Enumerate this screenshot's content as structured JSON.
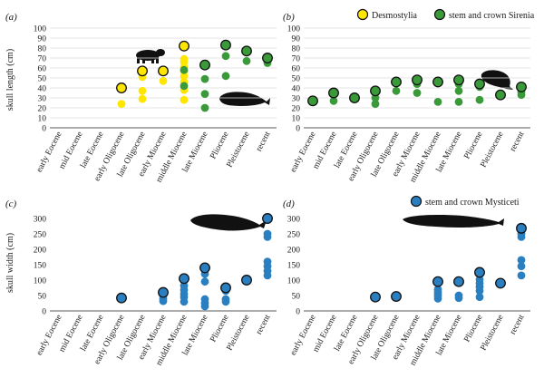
{
  "chart_data": [
    {
      "type": "scatter",
      "panel_label": "(a)",
      "ylabel": "skull length (cm)",
      "ylim": [
        0,
        100
      ],
      "yticks": [
        0,
        10,
        20,
        30,
        40,
        50,
        60,
        70,
        80,
        90,
        100
      ],
      "categories": [
        "early Eocene",
        "mid Eocene",
        "late Eocene",
        "early Oligocene",
        "late Oligocene",
        "early Miocene",
        "middle Miocene",
        "late Miocene",
        "Pliocene",
        "Pleistocene",
        "recent"
      ],
      "grid": true,
      "silhouettes": [
        "desmostylian-silhouette",
        "sirenian-silhouette"
      ],
      "series": [
        {
          "name": "Desmostylia",
          "color": "#ffe600",
          "points": [
            [
              3,
              24
            ],
            [
              3,
              40,
              "outlined"
            ],
            [
              4,
              29
            ],
            [
              4,
              37
            ],
            [
              4,
              51
            ],
            [
              4,
              57,
              "outlined"
            ],
            [
              5,
              47
            ],
            [
              5,
              57,
              "outlined"
            ],
            [
              6,
              28
            ],
            [
              6,
              38
            ],
            [
              6,
              46
            ],
            [
              6,
              52
            ],
            [
              6,
              57
            ],
            [
              6,
              61
            ],
            [
              6,
              66
            ],
            [
              6,
              69
            ],
            [
              6,
              82,
              "outlined"
            ]
          ]
        },
        {
          "name": "stem and crown Sirenia",
          "color": "#3a9a3a",
          "points": [
            [
              6,
              42
            ],
            [
              6,
              58
            ],
            [
              7,
              20
            ],
            [
              7,
              34
            ],
            [
              7,
              49
            ],
            [
              7,
              63,
              "outlined"
            ],
            [
              8,
              52
            ],
            [
              8,
              72
            ],
            [
              8,
              83,
              "outlined"
            ],
            [
              9,
              67
            ],
            [
              9,
              77,
              "outlined"
            ],
            [
              10,
              65
            ],
            [
              10,
              70,
              "outlined"
            ]
          ]
        }
      ]
    },
    {
      "type": "scatter",
      "panel_label": "(b)",
      "ylabel": "",
      "ylim": [
        0,
        100
      ],
      "yticks": [
        0,
        10,
        20,
        30,
        40,
        50,
        60,
        70,
        80,
        90,
        100
      ],
      "categories": [
        "early Eocene",
        "mid Eocene",
        "late Eocene",
        "early Oligocene",
        "late Oligocene",
        "early Miocene",
        "middle Miocene",
        "late Miocene",
        "Pliocene",
        "Pleistocene",
        "recent"
      ],
      "grid": true,
      "silhouettes": [
        "manatee-silhouette"
      ],
      "legend_position": "top",
      "legend": [
        {
          "label": "Desmostylia",
          "color": "#ffe600"
        },
        {
          "label": "stem and crown Sirenia",
          "color": "#3a9a3a"
        }
      ],
      "series": [
        {
          "name": "stem and crown Sirenia",
          "color": "#3a9a3a",
          "points": [
            [
              0,
              27,
              "outlined"
            ],
            [
              1,
              27
            ],
            [
              1,
              35,
              "outlined"
            ],
            [
              2,
              30,
              "outlined"
            ],
            [
              3,
              24
            ],
            [
              3,
              30
            ],
            [
              3,
              37,
              "outlined"
            ],
            [
              4,
              37
            ],
            [
              4,
              46,
              "outlined"
            ],
            [
              5,
              35
            ],
            [
              5,
              44
            ],
            [
              5,
              48,
              "outlined"
            ],
            [
              6,
              26
            ],
            [
              6,
              46,
              "outlined"
            ],
            [
              7,
              26
            ],
            [
              7,
              37
            ],
            [
              7,
              44
            ],
            [
              7,
              48,
              "outlined"
            ],
            [
              8,
              28
            ],
            [
              8,
              41
            ],
            [
              8,
              44,
              "outlined"
            ],
            [
              9,
              33,
              "outlined"
            ],
            [
              10,
              33
            ],
            [
              10,
              36
            ],
            [
              10,
              41,
              "outlined"
            ]
          ]
        }
      ]
    },
    {
      "type": "scatter",
      "panel_label": "(c)",
      "ylabel": "skull width (cm)",
      "ylim": [
        0,
        300
      ],
      "yticks": [
        0,
        50,
        100,
        150,
        200,
        250,
        300
      ],
      "categories": [
        "early Eocene",
        "mid Eocene",
        "late Eocene",
        "early Oligocene",
        "late Oligocene",
        "early Miocene",
        "middle Miocene",
        "late Miocene",
        "Pliocene",
        "Pleistocene",
        "recent"
      ],
      "grid": false,
      "silhouettes": [
        "whale-silhouette"
      ],
      "series": [
        {
          "name": "stem and crown Mysticeti",
          "color": "#2a7fc0",
          "points": [
            [
              3,
              42,
              "outlined"
            ],
            [
              5,
              32
            ],
            [
              5,
              40
            ],
            [
              5,
              48
            ],
            [
              5,
              60,
              "outlined"
            ],
            [
              6,
              30
            ],
            [
              6,
              45
            ],
            [
              6,
              55
            ],
            [
              6,
              68
            ],
            [
              6,
              82
            ],
            [
              6,
              105,
              "outlined"
            ],
            [
              7,
              15
            ],
            [
              7,
              25
            ],
            [
              7,
              38
            ],
            [
              7,
              95
            ],
            [
              7,
              120
            ],
            [
              7,
              140,
              "outlined"
            ],
            [
              8,
              30
            ],
            [
              8,
              38
            ],
            [
              8,
              65
            ],
            [
              8,
              75,
              "outlined"
            ],
            [
              9,
              100,
              "outlined"
            ],
            [
              10,
              115
            ],
            [
              10,
              130
            ],
            [
              10,
              145
            ],
            [
              10,
              160
            ],
            [
              10,
              240
            ],
            [
              10,
              250
            ],
            [
              10,
              295
            ],
            [
              10,
              300,
              "outlined"
            ]
          ]
        }
      ]
    },
    {
      "type": "scatter",
      "panel_label": "(d)",
      "ylabel": "",
      "ylim": [
        0,
        300
      ],
      "yticks": [
        0,
        50,
        100,
        150,
        200,
        250,
        300
      ],
      "categories": [
        "early Eocene",
        "mid Eocene",
        "late Eocene",
        "early Oligocene",
        "late Oligocene",
        "early Miocene",
        "middle Miocene",
        "late Miocene",
        "Pliocene",
        "Pleistocene",
        "recent"
      ],
      "grid": false,
      "silhouettes": [
        "whale-silhouette"
      ],
      "legend_position": "top-right",
      "legend": [
        {
          "label": "stem and crown Mysticeti",
          "color": "#2a7fc0"
        }
      ],
      "series": [
        {
          "name": "stem and crown Mysticeti",
          "color": "#2a7fc0",
          "points": [
            [
              3,
              45,
              "outlined"
            ],
            [
              4,
              47,
              "outlined"
            ],
            [
              6,
              40
            ],
            [
              6,
              48
            ],
            [
              6,
              55
            ],
            [
              6,
              62
            ],
            [
              6,
              70
            ],
            [
              6,
              95,
              "outlined"
            ],
            [
              7,
              42
            ],
            [
              7,
              50
            ],
            [
              7,
              95,
              "outlined"
            ],
            [
              8,
              45
            ],
            [
              8,
              65
            ],
            [
              8,
              78
            ],
            [
              8,
              90
            ],
            [
              8,
              102
            ],
            [
              8,
              125,
              "outlined"
            ],
            [
              9,
              90,
              "outlined"
            ],
            [
              10,
              115
            ],
            [
              10,
              145
            ],
            [
              10,
              165
            ],
            [
              10,
              240
            ],
            [
              10,
              250
            ],
            [
              10,
              268,
              "outlined"
            ]
          ]
        }
      ]
    }
  ]
}
